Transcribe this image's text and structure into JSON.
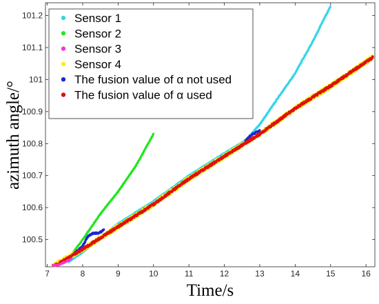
{
  "chart_data": {
    "type": "scatter",
    "title": "",
    "xlabel": "Time/s",
    "ylabel": "azimuth angle/°",
    "xlim": [
      6.95,
      16.25
    ],
    "ylim": [
      100.415,
      101.24
    ],
    "x_ticks": [
      7,
      8,
      9,
      10,
      11,
      12,
      13,
      14,
      15,
      16
    ],
    "x_tick_labels": [
      "7",
      "8",
      "9",
      "10",
      "11",
      "12",
      "13",
      "14",
      "15",
      "16"
    ],
    "y_ticks": [
      100.5,
      100.6,
      100.7,
      100.8,
      100.9,
      101,
      101.1,
      101.2
    ],
    "y_tick_labels": [
      "100.5",
      "100.6",
      "100.7",
      "100.8",
      "100.9",
      "101",
      "101.1",
      "101.2"
    ],
    "grid": false,
    "legend_position": "top-left",
    "series": [
      {
        "name": "Sensor 1",
        "color": "#33d6e8",
        "x": [
          7.6,
          8.0,
          9.0,
          10.0,
          11.0,
          12.0,
          12.6,
          13.0,
          13.5,
          14.0,
          14.5,
          15.0
        ],
        "y": [
          100.43,
          100.46,
          100.55,
          100.62,
          100.7,
          100.77,
          100.81,
          100.86,
          100.94,
          101.02,
          101.12,
          101.23
        ]
      },
      {
        "name": "Sensor 2",
        "color": "#22e622",
        "x": [
          7.6,
          8.0,
          8.5,
          9.0,
          9.5,
          10.0
        ],
        "y": [
          100.44,
          100.5,
          100.58,
          100.65,
          100.73,
          100.83
        ]
      },
      {
        "name": "Sensor 3",
        "color": "#ff33cc",
        "x": [
          7.15,
          7.3,
          7.5,
          7.7
        ],
        "y": [
          100.42,
          100.42,
          100.43,
          100.44
        ]
      },
      {
        "name": "Sensor 4",
        "color": "#f2f20a",
        "x": [
          7.2,
          8.0,
          9.0,
          10.0,
          11.0,
          12.0,
          13.0,
          14.0,
          15.0,
          16.2
        ],
        "y": [
          100.42,
          100.47,
          100.54,
          100.61,
          100.69,
          100.76,
          100.83,
          100.91,
          100.98,
          101.07
        ]
      },
      {
        "name": "The fusion value of α not used",
        "color": "#1f25d6",
        "x": [
          7.2,
          7.5,
          7.8,
          8.0,
          8.15,
          8.3,
          8.45,
          8.6,
          12.6,
          12.8,
          13.0
        ],
        "y": [
          100.42,
          100.43,
          100.46,
          100.48,
          100.51,
          100.52,
          100.52,
          100.53,
          100.81,
          100.83,
          100.84
        ]
      },
      {
        "name": "The fusion value of α used",
        "color": "#e01010",
        "x": [
          7.25,
          8.0,
          9.0,
          10.0,
          11.0,
          12.0,
          13.0,
          14.0,
          15.0,
          16.2
        ],
        "y": [
          100.42,
          100.47,
          100.54,
          100.61,
          100.69,
          100.76,
          100.83,
          100.91,
          100.98,
          101.07
        ]
      }
    ]
  }
}
